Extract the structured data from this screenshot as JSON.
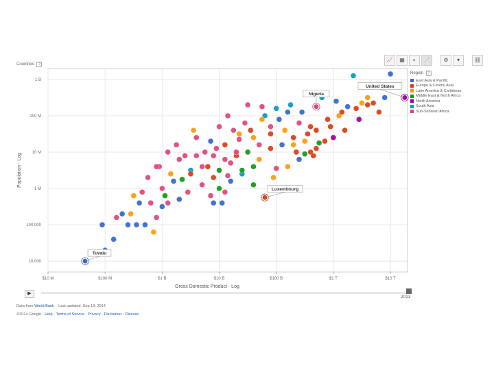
{
  "header": {
    "countries_label": "Countries",
    "help_glyph": "?"
  },
  "toolbar": {
    "buttons": [
      {
        "name": "line-chart-icon",
        "glyph": "📈"
      },
      {
        "name": "bar-chart-icon",
        "glyph": "▦"
      },
      {
        "name": "map-icon",
        "glyph": "◐"
      },
      {
        "name": "bubble-chart-icon",
        "glyph": "⋰"
      }
    ],
    "settings_glyph": "⚙",
    "dropdown_glyph": "▾",
    "link_glyph": "⛓"
  },
  "legend": {
    "title": "Region",
    "items": [
      {
        "label": "East Asia & Pacific",
        "color": "#3366cc"
      },
      {
        "label": "Europe & Central Asia",
        "color": "#dc3912"
      },
      {
        "label": "Latin America & Caribbean",
        "color": "#ff9900"
      },
      {
        "label": "Middle East & North Africa",
        "color": "#109618"
      },
      {
        "label": "North America",
        "color": "#990099"
      },
      {
        "label": "South Asia",
        "color": "#0099c6"
      },
      {
        "label": "Sub-Saharan Africa",
        "color": "#dd4477"
      }
    ]
  },
  "chart_data": {
    "type": "scatter",
    "xlabel": "Gross Domestic Product - Log",
    "ylabel": "Population - Log",
    "xscale": "log",
    "yscale": "log",
    "xlim_log10": [
      7,
      13.3
    ],
    "ylim_log10": [
      3.7,
      9.3
    ],
    "x_ticks": [
      {
        "label": "$10 M",
        "log": 7
      },
      {
        "label": "$100 M",
        "log": 8
      },
      {
        "label": "$1 B",
        "log": 9
      },
      {
        "label": "$10 B",
        "log": 10
      },
      {
        "label": "$100 B",
        "log": 11
      },
      {
        "label": "$1 T",
        "log": 12
      },
      {
        "label": "$10 T",
        "log": 13
      }
    ],
    "y_ticks": [
      {
        "label": "1 B",
        "log": 9
      },
      {
        "label": "100 M",
        "log": 8
      },
      {
        "label": "10 M",
        "log": 7
      },
      {
        "label": "1 M",
        "log": 6
      },
      {
        "label": "100,000",
        "log": 5
      },
      {
        "label": "10,000",
        "log": 4
      }
    ],
    "annotations": [
      {
        "label": "Tuvalu",
        "gdp_log": 7.65,
        "pop_log": 4.0,
        "region": "East Asia & Pacific"
      },
      {
        "label": "Luxembourg",
        "gdp_log": 10.8,
        "pop_log": 5.75,
        "region": "Europe & Central Asia"
      },
      {
        "label": "Nigeria",
        "gdp_log": 11.7,
        "pop_log": 8.25,
        "region": "Sub-Saharan Africa"
      },
      {
        "label": "United States",
        "gdp_log": 13.25,
        "pop_log": 8.5,
        "region": "North America"
      }
    ],
    "points": [
      {
        "x": 7.65,
        "y": 4.0,
        "r": 0
      },
      {
        "x": 8.0,
        "y": 4.3,
        "r": 0
      },
      {
        "x": 8.15,
        "y": 4.6,
        "r": 0
      },
      {
        "x": 7.95,
        "y": 5.0,
        "r": 0
      },
      {
        "x": 8.2,
        "y": 5.2,
        "r": 6
      },
      {
        "x": 8.4,
        "y": 5.0,
        "r": 0
      },
      {
        "x": 8.55,
        "y": 5.0,
        "r": 0
      },
      {
        "x": 8.7,
        "y": 5.0,
        "r": 0
      },
      {
        "x": 8.9,
        "y": 5.2,
        "r": 6
      },
      {
        "x": 8.45,
        "y": 5.3,
        "r": 2
      },
      {
        "x": 8.85,
        "y": 4.8,
        "r": 2
      },
      {
        "x": 9.0,
        "y": 5.5,
        "r": 0
      },
      {
        "x": 8.6,
        "y": 5.6,
        "r": 0
      },
      {
        "x": 8.8,
        "y": 5.6,
        "r": 6
      },
      {
        "x": 9.3,
        "y": 5.7,
        "r": 0
      },
      {
        "x": 9.0,
        "y": 6.0,
        "r": 6
      },
      {
        "x": 9.2,
        "y": 6.2,
        "r": 0
      },
      {
        "x": 9.5,
        "y": 6.5,
        "r": 5
      },
      {
        "x": 9.15,
        "y": 6.4,
        "r": 2
      },
      {
        "x": 9.35,
        "y": 6.25,
        "r": 3
      },
      {
        "x": 8.95,
        "y": 6.6,
        "r": 6
      },
      {
        "x": 9.4,
        "y": 6.9,
        "r": 6
      },
      {
        "x": 9.6,
        "y": 6.9,
        "r": 6
      },
      {
        "x": 9.8,
        "y": 6.6,
        "r": 1
      },
      {
        "x": 9.9,
        "y": 6.3,
        "r": 1
      },
      {
        "x": 10.0,
        "y": 6.5,
        "r": 3
      },
      {
        "x": 10.1,
        "y": 6.8,
        "r": 6
      },
      {
        "x": 10.3,
        "y": 6.9,
        "r": 1
      },
      {
        "x": 10.5,
        "y": 7.0,
        "r": 3
      },
      {
        "x": 10.7,
        "y": 6.8,
        "r": 2
      },
      {
        "x": 10.9,
        "y": 7.1,
        "r": 1
      },
      {
        "x": 11.1,
        "y": 7.2,
        "r": 0
      },
      {
        "x": 11.3,
        "y": 7.4,
        "r": 1
      },
      {
        "x": 11.5,
        "y": 7.3,
        "r": 2
      },
      {
        "x": 11.7,
        "y": 7.6,
        "r": 1
      },
      {
        "x": 11.9,
        "y": 7.9,
        "r": 1
      },
      {
        "x": 12.1,
        "y": 8.0,
        "r": 2
      },
      {
        "x": 12.4,
        "y": 8.2,
        "r": 1
      },
      {
        "x": 12.6,
        "y": 8.3,
        "r": 1
      },
      {
        "x": 12.9,
        "y": 8.5,
        "r": 0
      },
      {
        "x": 12.8,
        "y": 8.1,
        "r": 1
      },
      {
        "x": 12.2,
        "y": 7.6,
        "r": 1
      },
      {
        "x": 12.0,
        "y": 7.4,
        "r": 4
      },
      {
        "x": 11.95,
        "y": 7.7,
        "r": 1
      },
      {
        "x": 11.6,
        "y": 7.0,
        "r": 1
      },
      {
        "x": 11.4,
        "y": 6.8,
        "r": 0
      },
      {
        "x": 11.2,
        "y": 6.6,
        "r": 2
      },
      {
        "x": 10.95,
        "y": 6.3,
        "r": 2
      },
      {
        "x": 10.6,
        "y": 6.1,
        "r": 3
      },
      {
        "x": 10.4,
        "y": 6.4,
        "r": 5
      },
      {
        "x": 10.2,
        "y": 6.2,
        "r": 0
      },
      {
        "x": 10.1,
        "y": 5.9,
        "r": 6
      },
      {
        "x": 10.0,
        "y": 6.0,
        "r": 3
      },
      {
        "x": 9.9,
        "y": 5.6,
        "r": 0
      },
      {
        "x": 10.25,
        "y": 7.6,
        "r": 6
      },
      {
        "x": 10.45,
        "y": 7.8,
        "r": 6
      },
      {
        "x": 10.6,
        "y": 7.4,
        "r": 2
      },
      {
        "x": 10.8,
        "y": 8.0,
        "r": 5
      },
      {
        "x": 11.0,
        "y": 8.2,
        "r": 5
      },
      {
        "x": 11.2,
        "y": 8.1,
        "r": 0
      },
      {
        "x": 11.4,
        "y": 7.8,
        "r": 6
      },
      {
        "x": 11.6,
        "y": 7.7,
        "r": 1
      },
      {
        "x": 11.05,
        "y": 7.9,
        "r": 0
      },
      {
        "x": 10.9,
        "y": 7.5,
        "r": 1
      },
      {
        "x": 11.3,
        "y": 7.2,
        "r": 2
      },
      {
        "x": 11.5,
        "y": 6.95,
        "r": 3
      },
      {
        "x": 11.7,
        "y": 7.1,
        "r": 1
      },
      {
        "x": 12.35,
        "y": 9.1,
        "r": 5
      },
      {
        "x": 13.0,
        "y": 9.15,
        "r": 0
      },
      {
        "x": 12.25,
        "y": 8.25,
        "r": 0
      },
      {
        "x": 12.5,
        "y": 8.35,
        "r": 2
      },
      {
        "x": 11.8,
        "y": 8.5,
        "r": 5
      },
      {
        "x": 12.05,
        "y": 8.4,
        "r": 0
      },
      {
        "x": 9.6,
        "y": 7.4,
        "r": 6
      },
      {
        "x": 9.75,
        "y": 7.0,
        "r": 6
      },
      {
        "x": 9.85,
        "y": 7.3,
        "r": 0
      },
      {
        "x": 9.95,
        "y": 7.1,
        "r": 6
      },
      {
        "x": 10.1,
        "y": 7.2,
        "r": 1
      },
      {
        "x": 10.35,
        "y": 7.5,
        "r": 2
      },
      {
        "x": 10.55,
        "y": 7.6,
        "r": 1
      },
      {
        "x": 10.7,
        "y": 7.2,
        "r": 6
      },
      {
        "x": 9.1,
        "y": 7.0,
        "r": 6
      },
      {
        "x": 9.3,
        "y": 6.8,
        "r": 6
      },
      {
        "x": 9.5,
        "y": 6.4,
        "r": 1
      },
      {
        "x": 9.7,
        "y": 6.6,
        "r": 6
      },
      {
        "x": 9.9,
        "y": 6.9,
        "r": 6
      },
      {
        "x": 10.2,
        "y": 6.7,
        "r": 6
      },
      {
        "x": 10.4,
        "y": 6.5,
        "r": 3
      },
      {
        "x": 10.6,
        "y": 6.6,
        "r": 3
      },
      {
        "x": 10.3,
        "y": 7.0,
        "r": 6
      },
      {
        "x": 10.0,
        "y": 7.7,
        "r": 6
      },
      {
        "x": 10.15,
        "y": 8.0,
        "r": 6
      },
      {
        "x": 10.5,
        "y": 8.3,
        "r": 6
      },
      {
        "x": 10.75,
        "y": 8.25,
        "r": 6
      },
      {
        "x": 10.9,
        "y": 7.7,
        "r": 6
      },
      {
        "x": 11.15,
        "y": 7.6,
        "r": 2
      },
      {
        "x": 11.35,
        "y": 7.0,
        "r": 1
      },
      {
        "x": 11.55,
        "y": 7.5,
        "r": 1
      },
      {
        "x": 11.85,
        "y": 7.3,
        "r": 1
      },
      {
        "x": 12.15,
        "y": 8.1,
        "r": 1
      },
      {
        "x": 12.7,
        "y": 8.35,
        "r": 1
      },
      {
        "x": 9.45,
        "y": 5.9,
        "r": 6
      },
      {
        "x": 9.7,
        "y": 6.1,
        "r": 6
      },
      {
        "x": 9.55,
        "y": 7.6,
        "r": 2
      },
      {
        "x": 9.25,
        "y": 7.2,
        "r": 6
      },
      {
        "x": 8.9,
        "y": 6.6,
        "r": 6
      },
      {
        "x": 8.75,
        "y": 6.3,
        "r": 6
      },
      {
        "x": 8.5,
        "y": 5.8,
        "r": 2
      },
      {
        "x": 9.1,
        "y": 5.6,
        "r": 6
      },
      {
        "x": 8.3,
        "y": 5.3,
        "r": 0
      },
      {
        "x": 8.65,
        "y": 5.9,
        "r": 6
      },
      {
        "x": 9.05,
        "y": 5.8,
        "r": 3
      },
      {
        "x": 9.85,
        "y": 5.8,
        "r": 6
      },
      {
        "x": 10.05,
        "y": 5.6,
        "r": 0
      },
      {
        "x": 11.45,
        "y": 8.1,
        "r": 0
      },
      {
        "x": 11.25,
        "y": 8.3,
        "r": 5
      },
      {
        "x": 10.75,
        "y": 7.9,
        "r": 2
      },
      {
        "x": 10.35,
        "y": 7.35,
        "r": 6
      },
      {
        "x": 10.15,
        "y": 6.35,
        "r": 6
      },
      {
        "x": 11.0,
        "y": 6.55,
        "r": 6
      },
      {
        "x": 11.65,
        "y": 6.9,
        "r": 1
      },
      {
        "x": 11.75,
        "y": 7.25,
        "r": 3
      },
      {
        "x": 12.6,
        "y": 8.5,
        "r": 2
      },
      {
        "x": 12.45,
        "y": 7.9,
        "r": 4
      }
    ]
  },
  "timeline": {
    "play_glyph": "▶",
    "year": "2013"
  },
  "footer": {
    "data_from": "Data from",
    "source_link": "World Bank",
    "last_updated": "Last updated: Sep 19, 2014",
    "copyright": "©2014 Google -",
    "links": [
      "Help",
      "Terms of Service",
      "Privacy",
      "Disclaimer",
      "Discuss"
    ]
  }
}
